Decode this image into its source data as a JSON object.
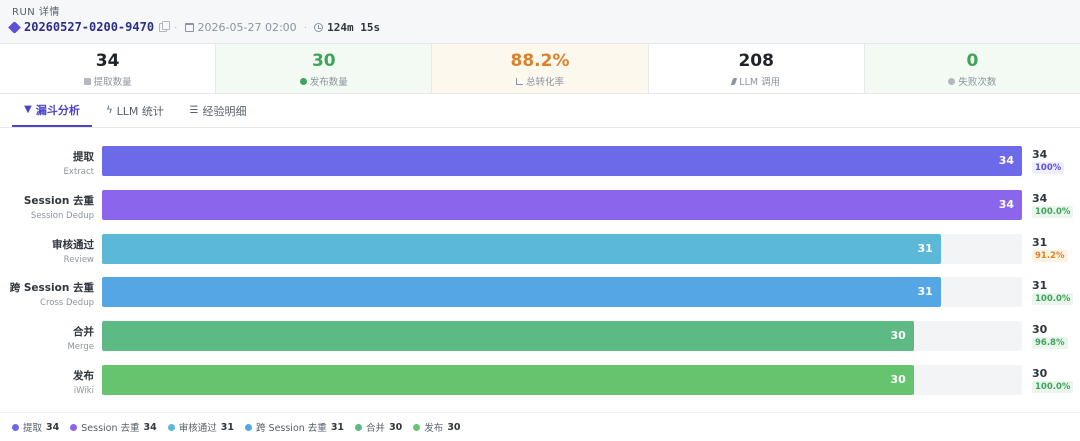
{
  "header": {
    "label": "RUN 详情",
    "run_id": "20260527-0200-9470",
    "datetime": "2026-05-27 02:00",
    "duration": "124m 15s"
  },
  "stats": [
    {
      "value": "34",
      "label": "提取数量",
      "icon": "box-icon",
      "color": "#1f2328",
      "bg": "#ffffff"
    },
    {
      "value": "30",
      "label": "发布数量",
      "icon": "check-circle-icon",
      "color": "#3fa35b",
      "bg": "#f2faf3"
    },
    {
      "value": "88.2%",
      "label": "总转化率",
      "icon": "trend-icon",
      "color": "#d9822b",
      "bg": "#fdf8ee"
    },
    {
      "value": "208",
      "label": "LLM 调用",
      "icon": "bolt-icon",
      "color": "#1f2328",
      "bg": "#ffffff"
    },
    {
      "value": "0",
      "label": "失败次数",
      "icon": "alert-icon",
      "color": "#3fa35b",
      "bg": "#f2faf3"
    }
  ],
  "tabs": [
    {
      "label": "漏斗分析",
      "icon": "funnel-icon",
      "active": true
    },
    {
      "label": "LLM 统计",
      "icon": "bolt-icon",
      "active": false
    },
    {
      "label": "经验明细",
      "icon": "list-icon",
      "active": false
    }
  ],
  "chart_data": {
    "type": "bar",
    "orientation": "horizontal",
    "max": 34,
    "stages": [
      {
        "name": "提取",
        "sub": "Extract",
        "value": 34,
        "pct": "100%",
        "color": "#6c6ae8",
        "pct_color": "#5b52d6",
        "pct_bg": "#eeeefc"
      },
      {
        "name": "Session 去重",
        "sub": "Session Dedup",
        "value": 34,
        "pct": "100.0%",
        "color": "#8b65ec",
        "pct_color": "#3fa35b",
        "pct_bg": "#eaf6ec"
      },
      {
        "name": "审核通过",
        "sub": "Review",
        "value": 31,
        "pct": "91.2%",
        "color": "#5bb8d6",
        "pct_color": "#d9822b",
        "pct_bg": "#fcf3e3"
      },
      {
        "name": "跨 Session 去重",
        "sub": "Cross Dedup",
        "value": 31,
        "pct": "100.0%",
        "color": "#55a6e4",
        "pct_color": "#3fa35b",
        "pct_bg": "#eaf6ec"
      },
      {
        "name": "合并",
        "sub": "Merge",
        "value": 30,
        "pct": "96.8%",
        "color": "#5dba85",
        "pct_color": "#3fa35b",
        "pct_bg": "#eaf6ec"
      },
      {
        "name": "发布",
        "sub": "iWiki",
        "value": 30,
        "pct": "100.0%",
        "color": "#66c46e",
        "pct_color": "#3fa35b",
        "pct_bg": "#eaf6ec"
      }
    ]
  },
  "legend": [
    {
      "name": "提取",
      "value": "34",
      "color": "#6c6ae8"
    },
    {
      "name": "Session 去重",
      "value": "34",
      "color": "#8b65ec"
    },
    {
      "name": "审核通过",
      "value": "31",
      "color": "#5bb8d6"
    },
    {
      "name": "跨 Session 去重",
      "value": "31",
      "color": "#55a6e4"
    },
    {
      "name": "合并",
      "value": "30",
      "color": "#5dba85"
    },
    {
      "name": "发布",
      "value": "30",
      "color": "#66c46e"
    }
  ]
}
